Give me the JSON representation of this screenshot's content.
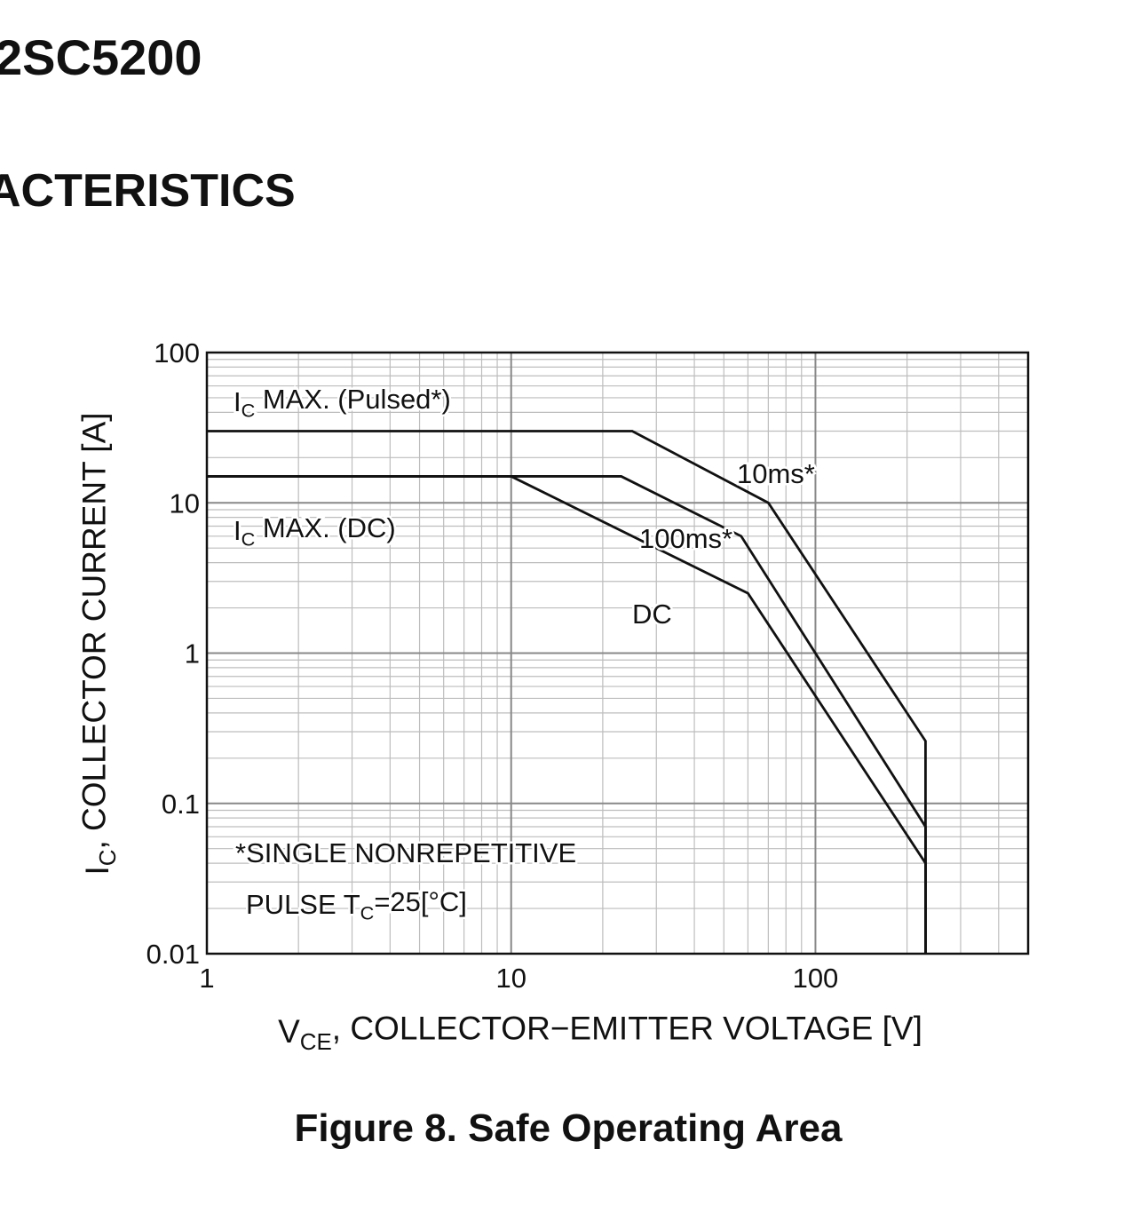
{
  "header": {
    "part_number": "2SC5200",
    "section": "ACTERISTICS"
  },
  "caption": "Figure 8. Safe Operating Area",
  "chart_data": {
    "type": "line",
    "x_label": {
      "main": "V",
      "sub": "CE",
      "tail": ", COLLECTOR−EMITTER VOLTAGE [V]"
    },
    "y_label": {
      "main": "I",
      "sub": "C",
      "tail": ", COLLECTOR CURRENT [A]"
    },
    "xlim": [
      1,
      500
    ],
    "ylim": [
      0.01,
      100
    ],
    "xticks": [
      1,
      10,
      100
    ],
    "yticks": [
      0.01,
      0.1,
      1,
      10,
      100
    ],
    "log_x": true,
    "log_y": true,
    "grid": true,
    "minor_grid": true,
    "series": [
      {
        "name": "10ms*",
        "color": "#111111",
        "x": [
          1,
          25,
          70,
          230,
          230
        ],
        "values": [
          30,
          30,
          10,
          0.26,
          0.01
        ]
      },
      {
        "name": "100ms*",
        "color": "#111111",
        "x": [
          1,
          23,
          57,
          230,
          230
        ],
        "values": [
          15,
          15,
          6,
          0.07,
          0.01
        ]
      },
      {
        "name": "DC",
        "color": "#111111",
        "x": [
          1,
          10,
          60,
          230,
          230
        ],
        "values": [
          15,
          15,
          2.5,
          0.04,
          0.01
        ]
      }
    ],
    "annotations": [
      {
        "main": "I",
        "sub": "C",
        "tail": " MAX. (Pulsed*)"
      },
      {
        "main": "I",
        "sub": "C",
        "tail": " MAX. (DC)"
      },
      {
        "main": "*SINGLE NONREPETITIVE"
      },
      {
        "main": "PULSE T",
        "sub": "C",
        "tail": "=25[°C]"
      }
    ]
  }
}
